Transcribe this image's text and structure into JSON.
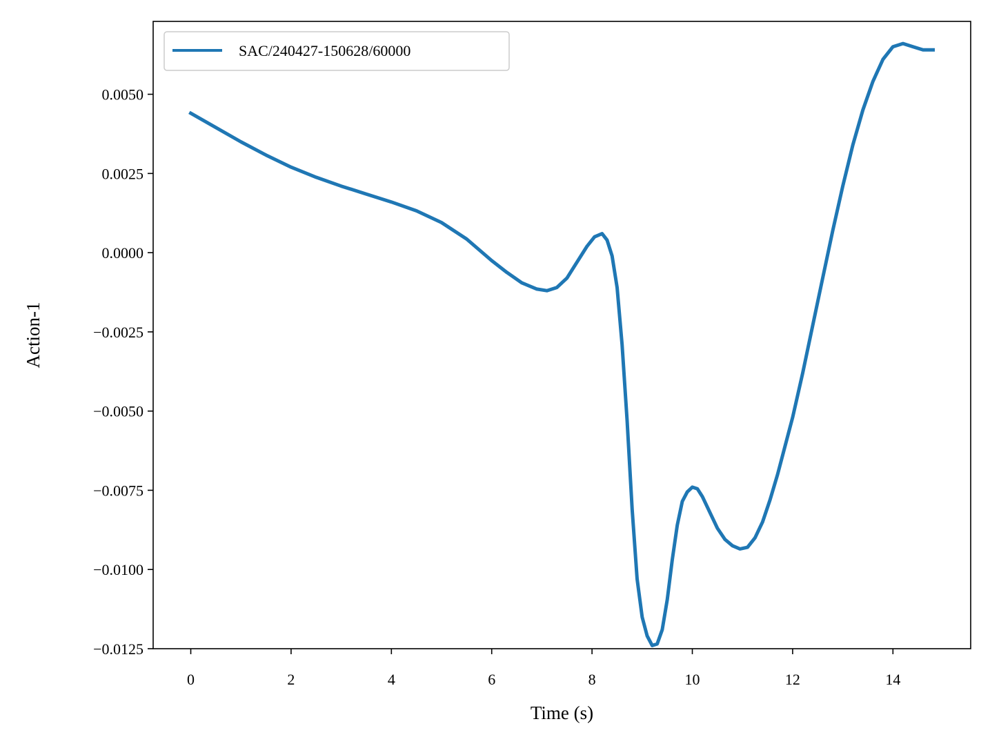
{
  "chart_data": {
    "type": "line",
    "title": "",
    "xlabel": "Time (s)",
    "ylabel": "Action-1",
    "xlim": [
      -0.75,
      15.55
    ],
    "ylim": [
      -0.0125,
      0.0073
    ],
    "xticks": [
      0,
      2,
      4,
      6,
      8,
      10,
      12,
      14
    ],
    "xtick_labels": [
      "0",
      "2",
      "4",
      "6",
      "8",
      "10",
      "12",
      "14"
    ],
    "yticks": [
      0.005,
      0.0025,
      0.0,
      -0.0025,
      -0.005,
      -0.0075,
      -0.01,
      -0.0125
    ],
    "ytick_labels": [
      "0.0050",
      "0.0025",
      "0.0000",
      "−0.0025",
      "−0.0050",
      "−0.0075",
      "−0.0100",
      "−0.0125"
    ],
    "grid": false,
    "legend_position": "upper-left",
    "series": [
      {
        "name": "SAC/240427-150628/60000",
        "color": "#1f77b4",
        "x": [
          0.0,
          0.5,
          1.0,
          1.5,
          2.0,
          2.5,
          3.0,
          3.5,
          4.0,
          4.5,
          5.0,
          5.5,
          6.0,
          6.3,
          6.6,
          6.9,
          7.1,
          7.3,
          7.5,
          7.7,
          7.9,
          8.05,
          8.2,
          8.3,
          8.4,
          8.5,
          8.6,
          8.7,
          8.8,
          8.9,
          9.0,
          9.1,
          9.2,
          9.3,
          9.4,
          9.5,
          9.6,
          9.7,
          9.8,
          9.9,
          10.0,
          10.1,
          10.2,
          10.35,
          10.5,
          10.65,
          10.8,
          10.95,
          11.1,
          11.25,
          11.4,
          11.55,
          11.7,
          11.85,
          12.0,
          12.2,
          12.4,
          12.6,
          12.8,
          13.0,
          13.2,
          13.4,
          13.6,
          13.8,
          14.0,
          14.2,
          14.4,
          14.6,
          14.8
        ],
        "y": [
          0.0044,
          0.00395,
          0.0035,
          0.00308,
          0.0027,
          0.00238,
          0.0021,
          0.00185,
          0.0016,
          0.00132,
          0.00095,
          0.00043,
          -0.00025,
          -0.00062,
          -0.00095,
          -0.00115,
          -0.0012,
          -0.0011,
          -0.0008,
          -0.0003,
          0.0002,
          0.0005,
          0.0006,
          0.0004,
          -0.0001,
          -0.0011,
          -0.0029,
          -0.0053,
          -0.0081,
          -0.0103,
          -0.0115,
          -0.0121,
          -0.0124,
          -0.01235,
          -0.0119,
          -0.01095,
          -0.0097,
          -0.0086,
          -0.00785,
          -0.00755,
          -0.0074,
          -0.00745,
          -0.0077,
          -0.0082,
          -0.0087,
          -0.00905,
          -0.00925,
          -0.00935,
          -0.0093,
          -0.009,
          -0.0085,
          -0.0078,
          -0.007,
          -0.0061,
          -0.0052,
          -0.0038,
          -0.0023,
          -0.0008,
          0.0007,
          0.0021,
          0.0034,
          0.0045,
          0.0054,
          0.0061,
          0.0065,
          0.0066,
          0.0065,
          0.0064,
          0.0064
        ]
      }
    ]
  }
}
